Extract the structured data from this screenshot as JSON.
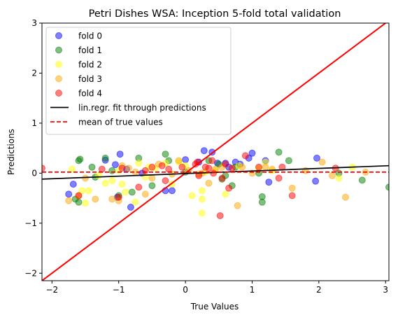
{
  "chart_data": {
    "type": "scatter",
    "title": "Petri Dishes WSA: Inception 5-fold total validation",
    "xlabel": "True Values",
    "ylabel": "Predictions",
    "xlim": [
      -2.15,
      3.05
    ],
    "ylim": [
      -2.15,
      3.0
    ],
    "xticks": [
      -2,
      -1,
      0,
      1,
      2,
      3
    ],
    "yticks": [
      -2,
      -1,
      0,
      1,
      2,
      3
    ],
    "grid": false,
    "legend_position": "top-left",
    "series": [
      {
        "name": "fold 0",
        "color": "#0000ff",
        "points": [
          [
            -1.75,
            -0.42
          ],
          [
            -1.68,
            -0.22
          ],
          [
            -1.2,
            0.26
          ],
          [
            -1.05,
            0.17
          ],
          [
            -0.98,
            0.38
          ],
          [
            -1.02,
            -0.48
          ],
          [
            -0.88,
            0.08
          ],
          [
            -0.82,
            -0.68
          ],
          [
            -0.65,
            0.0
          ],
          [
            -0.3,
            -0.35
          ],
          [
            -0.2,
            -0.35
          ],
          [
            0.0,
            0.27
          ],
          [
            0.2,
            0.22
          ],
          [
            0.28,
            0.45
          ],
          [
            0.4,
            0.42
          ],
          [
            0.48,
            0.2
          ],
          [
            0.6,
            0.2
          ],
          [
            0.65,
            0.12
          ],
          [
            0.75,
            0.22
          ],
          [
            0.82,
            0.18
          ],
          [
            0.95,
            0.3
          ],
          [
            1.0,
            0.4
          ],
          [
            1.25,
            -0.18
          ],
          [
            1.2,
            0.25
          ],
          [
            1.95,
            -0.16
          ],
          [
            1.97,
            0.3
          ]
        ]
      },
      {
        "name": "fold 1",
        "color": "#008000",
        "points": [
          [
            -1.65,
            -0.52
          ],
          [
            -1.6,
            -0.58
          ],
          [
            -1.58,
            0.28
          ],
          [
            -1.6,
            0.25
          ],
          [
            -1.4,
            0.12
          ],
          [
            -1.35,
            -0.08
          ],
          [
            -1.2,
            0.3
          ],
          [
            -1.1,
            0.05
          ],
          [
            -1.0,
            -0.45
          ],
          [
            -0.8,
            -0.38
          ],
          [
            -0.7,
            0.3
          ],
          [
            -0.5,
            -0.25
          ],
          [
            -0.3,
            0.38
          ],
          [
            -0.25,
            0.25
          ],
          [
            0.0,
            0.02
          ],
          [
            0.35,
            0.25
          ],
          [
            0.5,
            0.18
          ],
          [
            0.55,
            -0.12
          ],
          [
            0.6,
            -0.05
          ],
          [
            0.7,
            -0.25
          ],
          [
            0.75,
            0.12
          ],
          [
            1.1,
            0.0
          ],
          [
            1.15,
            -0.47
          ],
          [
            1.15,
            -0.58
          ],
          [
            1.4,
            0.42
          ],
          [
            1.55,
            0.25
          ],
          [
            2.3,
            0.0
          ],
          [
            2.65,
            -0.14
          ],
          [
            3.05,
            -0.28
          ]
        ]
      },
      {
        "name": "fold 2",
        "color": "#ffff00",
        "points": [
          [
            -1.7,
            0.08
          ],
          [
            -1.55,
            -0.35
          ],
          [
            -1.5,
            -0.6
          ],
          [
            -1.45,
            -0.35
          ],
          [
            -1.3,
            -0.05
          ],
          [
            -1.2,
            -0.2
          ],
          [
            -1.1,
            -0.15
          ],
          [
            -1.0,
            0.05
          ],
          [
            -0.95,
            -0.22
          ],
          [
            -0.9,
            -0.38
          ],
          [
            -0.75,
            -0.58
          ],
          [
            -0.7,
            0.2
          ],
          [
            -0.6,
            -0.08
          ],
          [
            -0.55,
            0.12
          ],
          [
            -0.45,
            0.1
          ],
          [
            -0.3,
            0.2
          ],
          [
            -0.2,
            -0.22
          ],
          [
            -0.1,
            0.22
          ],
          [
            0.0,
            0.15
          ],
          [
            0.1,
            -0.45
          ],
          [
            0.25,
            -0.35
          ],
          [
            0.25,
            -0.52
          ],
          [
            0.25,
            -0.8
          ],
          [
            0.3,
            0.02
          ],
          [
            0.45,
            0.05
          ],
          [
            0.6,
            -0.42
          ],
          [
            0.8,
            0.15
          ],
          [
            1.1,
            0.1
          ],
          [
            1.2,
            0.22
          ],
          [
            1.3,
            0.05
          ],
          [
            2.3,
            -0.1
          ],
          [
            2.5,
            0.12
          ]
        ]
      },
      {
        "name": "fold 3",
        "color": "#ffa500",
        "points": [
          [
            -1.75,
            -0.55
          ],
          [
            -1.6,
            -0.45
          ],
          [
            -1.5,
            -0.1
          ],
          [
            -1.35,
            -0.52
          ],
          [
            -1.1,
            -0.52
          ],
          [
            -1.0,
            -0.55
          ],
          [
            -0.95,
            0.15
          ],
          [
            -0.85,
            0.1
          ],
          [
            -0.75,
            0.02
          ],
          [
            -0.6,
            -0.42
          ],
          [
            -0.5,
            -0.1
          ],
          [
            -0.4,
            0.18
          ],
          [
            -0.2,
            -0.02
          ],
          [
            -0.1,
            0.25
          ],
          [
            0.05,
            0.05
          ],
          [
            0.2,
            -0.02
          ],
          [
            0.25,
            0.0
          ],
          [
            0.35,
            -0.2
          ],
          [
            0.45,
            0.08
          ],
          [
            0.55,
            0.12
          ],
          [
            0.78,
            -0.65
          ],
          [
            0.85,
            0.12
          ],
          [
            1.0,
            0.0
          ],
          [
            1.2,
            0.12
          ],
          [
            1.3,
            0.08
          ],
          [
            1.6,
            -0.3
          ],
          [
            1.8,
            0.05
          ],
          [
            2.05,
            0.22
          ],
          [
            2.2,
            -0.05
          ],
          [
            2.4,
            -0.48
          ],
          [
            2.7,
            0.02
          ]
        ]
      },
      {
        "name": "fold 4",
        "color": "#ff0000",
        "points": [
          [
            -2.15,
            0.1
          ],
          [
            -1.6,
            -0.45
          ],
          [
            -1.25,
            0.08
          ],
          [
            -1.0,
            -0.48
          ],
          [
            -0.95,
            0.1
          ],
          [
            -0.7,
            -0.28
          ],
          [
            -0.6,
            0.05
          ],
          [
            -0.5,
            0.12
          ],
          [
            -0.35,
            0.15
          ],
          [
            -0.3,
            -0.15
          ],
          [
            -0.25,
            0.08
          ],
          [
            -0.05,
            0.12
          ],
          [
            0.15,
            0.18
          ],
          [
            0.18,
            0.22
          ],
          [
            0.2,
            -0.05
          ],
          [
            0.3,
            0.12
          ],
          [
            0.35,
            0.1
          ],
          [
            0.4,
            0.25
          ],
          [
            0.42,
            0.0
          ],
          [
            0.55,
            -0.1
          ],
          [
            0.6,
            0.18
          ],
          [
            0.65,
            -0.3
          ],
          [
            0.7,
            0.1
          ],
          [
            0.52,
            -0.85
          ],
          [
            0.9,
            0.35
          ],
          [
            1.1,
            0.12
          ],
          [
            1.4,
            -0.1
          ],
          [
            1.45,
            0.12
          ],
          [
            1.6,
            -0.45
          ],
          [
            2.25,
            0.1
          ]
        ]
      }
    ],
    "lines": [
      {
        "name": "lin.regr. fit through predictions",
        "color": "#000000",
        "style": "solid",
        "points": [
          [
            -2.15,
            -0.12
          ],
          [
            3.05,
            0.15
          ]
        ]
      },
      {
        "name": "mean of true values",
        "color": "#ff0000",
        "style": "dashed",
        "points": [
          [
            -2.15,
            0.02
          ],
          [
            3.05,
            0.02
          ]
        ]
      },
      {
        "name": "",
        "color": "#ff0000",
        "style": "solid",
        "points": [
          [
            -2.15,
            -2.15
          ],
          [
            3.0,
            3.0
          ]
        ]
      }
    ],
    "legend": [
      {
        "label": "fold 0",
        "kind": "marker",
        "color": "#0000ff"
      },
      {
        "label": "fold 1",
        "kind": "marker",
        "color": "#008000"
      },
      {
        "label": "fold 2",
        "kind": "marker",
        "color": "#ffff00"
      },
      {
        "label": "fold 3",
        "kind": "marker",
        "color": "#ffa500"
      },
      {
        "label": "fold 4",
        "kind": "marker",
        "color": "#ff0000"
      },
      {
        "label": "lin.regr. fit through predictions",
        "kind": "line",
        "color": "#000000"
      },
      {
        "label": "mean of true values",
        "kind": "dashed",
        "color": "#ff0000"
      }
    ]
  }
}
